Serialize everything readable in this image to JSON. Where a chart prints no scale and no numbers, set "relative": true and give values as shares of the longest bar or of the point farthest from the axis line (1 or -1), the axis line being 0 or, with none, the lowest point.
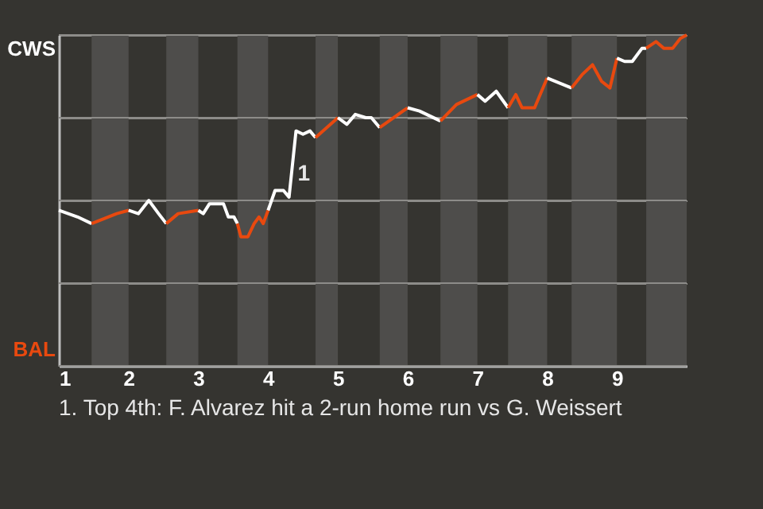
{
  "chart_data": {
    "type": "line",
    "relative": true,
    "series": [
      {
        "color": "#ffffff",
        "x": [
          1.0,
          1.27,
          1.47
        ],
        "values": [
          0.47,
          0.45,
          0.43
        ]
      },
      {
        "color": "#e8490f",
        "x": [
          1.47,
          1.83,
          2.0
        ],
        "values": [
          0.43,
          0.46,
          0.47
        ]
      },
      {
        "color": "#ffffff",
        "x": [
          2.0,
          2.14,
          2.29,
          2.43,
          2.54
        ],
        "values": [
          0.47,
          0.46,
          0.5,
          0.46,
          0.43
        ]
      },
      {
        "color": "#e8490f",
        "x": [
          2.54,
          2.71,
          3.0
        ],
        "values": [
          0.43,
          0.46,
          0.47
        ]
      },
      {
        "color": "#ffffff",
        "x": [
          3.0,
          3.07,
          3.16,
          3.36,
          3.43,
          3.51,
          3.56
        ],
        "values": [
          0.47,
          0.46,
          0.49,
          0.49,
          0.45,
          0.45,
          0.43
        ]
      },
      {
        "color": "#e8490f",
        "x": [
          3.56,
          3.61,
          3.71,
          3.8,
          3.87,
          3.93,
          4.0
        ],
        "values": [
          0.43,
          0.39,
          0.39,
          0.43,
          0.45,
          0.43,
          0.47
        ]
      },
      {
        "color": "#ffffff",
        "x": [
          4.0,
          4.1,
          4.22,
          4.3,
          4.4,
          4.5,
          4.6,
          4.68
        ],
        "values": [
          0.47,
          0.53,
          0.53,
          0.51,
          0.71,
          0.7,
          0.71,
          0.69
        ]
      },
      {
        "color": "#e8490f",
        "x": [
          4.68,
          5.0
        ],
        "values": [
          0.69,
          0.75
        ]
      },
      {
        "color": "#ffffff",
        "x": [
          5.0,
          5.13,
          5.25,
          5.4,
          5.48,
          5.6
        ],
        "values": [
          0.75,
          0.73,
          0.76,
          0.75,
          0.75,
          0.72
        ]
      },
      {
        "color": "#e8490f",
        "x": [
          5.6,
          6.0
        ],
        "values": [
          0.72,
          0.78
        ]
      },
      {
        "color": "#ffffff",
        "x": [
          6.0,
          6.17,
          6.47
        ],
        "values": [
          0.78,
          0.77,
          0.74
        ]
      },
      {
        "color": "#e8490f",
        "x": [
          6.47,
          6.7,
          7.0
        ],
        "values": [
          0.74,
          0.79,
          0.82
        ]
      },
      {
        "color": "#ffffff",
        "x": [
          7.0,
          7.11,
          7.27,
          7.44
        ],
        "values": [
          0.82,
          0.8,
          0.83,
          0.78
        ]
      },
      {
        "color": "#e8490f",
        "x": [
          7.44,
          7.55,
          7.64,
          7.82,
          8.0
        ],
        "values": [
          0.78,
          0.82,
          0.78,
          0.78,
          0.87
        ]
      },
      {
        "color": "#ffffff",
        "x": [
          8.0,
          8.35
        ],
        "values": [
          0.87,
          0.84
        ]
      },
      {
        "color": "#e8490f",
        "x": [
          8.35,
          8.5,
          8.65,
          8.78,
          8.9,
          9.0
        ],
        "values": [
          0.84,
          0.88,
          0.91,
          0.86,
          0.84,
          0.93
        ]
      },
      {
        "color": "#ffffff",
        "x": [
          9.0,
          9.11,
          9.22,
          9.36,
          9.42
        ],
        "values": [
          0.93,
          0.92,
          0.92,
          0.96,
          0.96
        ]
      },
      {
        "color": "#e8490f",
        "x": [
          9.42,
          9.56,
          9.67,
          9.8,
          9.91,
          10.0
        ],
        "values": [
          0.96,
          0.98,
          0.96,
          0.96,
          0.99,
          1.0
        ]
      }
    ],
    "xlim": [
      1,
      10
    ],
    "xticks": [
      1,
      2,
      3,
      4,
      5,
      6,
      7,
      8,
      9
    ],
    "grid": "y",
    "marker": "none",
    "bands": [
      {
        "axis": "x",
        "from": 1.47,
        "to": 2,
        "color": "#4e4d4b"
      },
      {
        "axis": "x",
        "from": 2.54,
        "to": 3,
        "color": "#4e4d4b"
      },
      {
        "axis": "x",
        "from": 3.56,
        "to": 4,
        "color": "#4e4d4b"
      },
      {
        "axis": "x",
        "from": 4.68,
        "to": 5,
        "color": "#4e4d4b"
      },
      {
        "axis": "x",
        "from": 5.6,
        "to": 6,
        "color": "#4e4d4b"
      },
      {
        "axis": "x",
        "from": 6.47,
        "to": 7,
        "color": "#4e4d4b"
      },
      {
        "axis": "x",
        "from": 7.44,
        "to": 8,
        "color": "#4e4d4b"
      },
      {
        "axis": "x",
        "from": 8.35,
        "to": 9,
        "color": "#4e4d4b"
      },
      {
        "axis": "x",
        "from": 9.42,
        "to": 10,
        "color": "#4e4d4b"
      }
    ],
    "annotations": [
      "CWS",
      "BAL",
      {
        "text": "1",
        "x": 4.4,
        "y": 0.58
      },
      "1. Top 4th: F. Alvarez hit a 2-run home run vs G. Weissert"
    ]
  }
}
